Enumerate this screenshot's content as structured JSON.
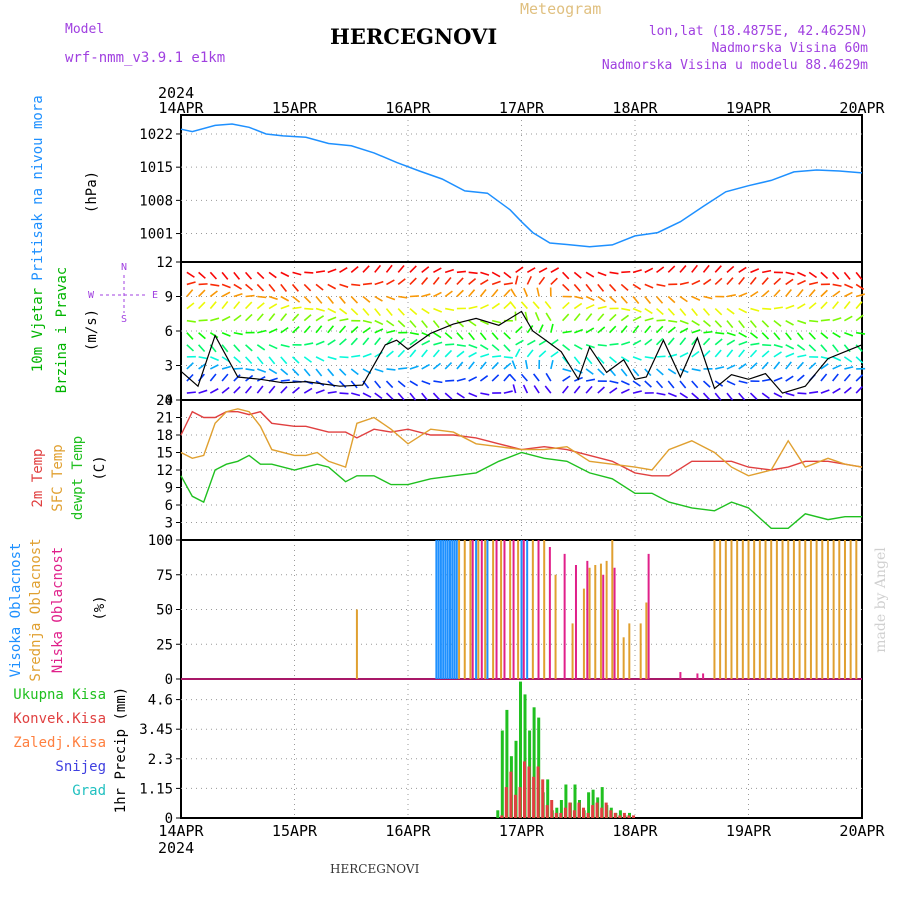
{
  "header": {
    "model_label": "Model",
    "model_name": "wrf-nmm_v3.9.1 e1km",
    "station_title": "HERCEGNOVI",
    "meteogram_label": "Meteogram",
    "lonlat": "lon,lat (18.4875E, 42.4625N)",
    "elevation": "Nadmorska Visina 60m",
    "model_elevation": "Nadmorska Visina u modelu 88.4629m",
    "footer_station": "HERCEGNOVI",
    "watermark": "made by Angel"
  },
  "colors": {
    "pressure": "#1e90ff",
    "wind_label": "#00b400",
    "temp_2m": "#e04040",
    "temp_sfc": "#e0a030",
    "dewpoint": "#20c020",
    "high_cloud": "#1e90ff",
    "mid_cloud": "#e0a030",
    "low_cloud": "#e0208a",
    "precip_total": "#20c020",
    "precip_conv": "#e04040",
    "precip_frozen": "#ff8040",
    "snow": "#4040e0",
    "hail": "#20c0c0",
    "compass": "#a040e0",
    "header_purple": "#a040e0"
  },
  "chart_data": [
    {
      "type": "line",
      "panel": "pressure",
      "ylabel": [
        "Pritisak na nivou mora",
        "(hPa)"
      ],
      "y_ticks": [
        "1022",
        "1015",
        "1008",
        "1001"
      ],
      "y_tick_values": [
        1022,
        1015,
        1008,
        1001
      ],
      "ylim": [
        995,
        1026
      ],
      "x_top_year": "2024",
      "x_bottom_year": "2024",
      "x_ticks": [
        "14APR",
        "15APR",
        "16APR",
        "17APR",
        "18APR",
        "19APR",
        "20APR"
      ],
      "xlim_days": [
        0,
        6
      ],
      "series": [
        {
          "x": [
            0,
            0.1,
            0.3,
            0.45,
            0.6,
            0.75,
            0.9,
            1.1,
            1.3,
            1.5,
            1.7,
            1.9,
            2.1,
            2.3,
            2.5,
            2.7,
            2.9,
            3.0,
            3.1,
            3.25,
            3.4,
            3.6,
            3.8,
            4.0,
            4.2,
            4.4,
            4.6,
            4.8,
            5.0,
            5.2,
            5.4,
            5.6,
            5.8,
            6.0
          ],
          "y": [
            1023,
            1022.5,
            1023.8,
            1024.1,
            1023.4,
            1022,
            1021.6,
            1021.3,
            1020,
            1019.5,
            1018,
            1016,
            1014.2,
            1012.5,
            1010,
            1009.5,
            1006,
            1003.5,
            1001.2,
            999,
            998.7,
            998.2,
            998.6,
            1000.5,
            1001.2,
            1003.5,
            1006.7,
            1009.8,
            1011.1,
            1012.2,
            1014,
            1014.4,
            1014.2,
            1013.8
          ]
        }
      ]
    },
    {
      "type": "line",
      "panel": "wind",
      "ylabel": [
        "10m Vjetar",
        "Brzina i Pravac",
        "(m/s)"
      ],
      "compass_labels": [
        "N",
        "S",
        "W",
        "E"
      ],
      "y_ticks": [
        "12",
        "9",
        "6",
        "3",
        "0"
      ],
      "y_tick_values": [
        12,
        9,
        6,
        3,
        0
      ],
      "ylim": [
        0,
        12
      ],
      "series": [
        {
          "name": "speed",
          "x": [
            0,
            0.15,
            0.3,
            0.5,
            0.7,
            0.9,
            1.1,
            1.4,
            1.6,
            1.8,
            1.9,
            2.0,
            2.2,
            2.4,
            2.6,
            2.8,
            3.0,
            3.1,
            3.2,
            3.35,
            3.5,
            3.6,
            3.75,
            3.9,
            4.0,
            4.1,
            4.25,
            4.4,
            4.55,
            4.7,
            4.85,
            5.0,
            5.15,
            5.3,
            5.5,
            5.7,
            5.85,
            6.0
          ],
          "y": [
            2.5,
            1.2,
            5.6,
            2.0,
            1.8,
            1.5,
            1.6,
            1.2,
            1.3,
            4.8,
            5.2,
            4.4,
            5.8,
            6.6,
            7.1,
            6.5,
            7.7,
            6.0,
            5.3,
            4.2,
            1.8,
            4.6,
            2.4,
            3.5,
            1.8,
            2.0,
            5.2,
            2.0,
            5.4,
            1.0,
            2.2,
            1.8,
            2.3,
            0.6,
            1.2,
            3.6,
            4.2,
            4.8
          ]
        }
      ]
    },
    {
      "type": "line",
      "panel": "temperature",
      "ylabel": [
        "2m Temp",
        "SFC Temp",
        "dewpt Temp",
        "(C)"
      ],
      "y_ticks": [
        "24",
        "21",
        "18",
        "15",
        "12",
        "9",
        "6",
        "3",
        "0"
      ],
      "y_tick_values": [
        24,
        21,
        18,
        15,
        12,
        9,
        6,
        3,
        0
      ],
      "ylim": [
        0,
        24
      ],
      "x": [
        0,
        0.1,
        0.2,
        0.3,
        0.4,
        0.5,
        0.6,
        0.7,
        0.8,
        1.0,
        1.1,
        1.2,
        1.3,
        1.45,
        1.55,
        1.7,
        1.85,
        2.0,
        2.2,
        2.4,
        2.6,
        2.8,
        3.0,
        3.2,
        3.4,
        3.6,
        3.8,
        4.0,
        4.15,
        4.3,
        4.5,
        4.7,
        4.85,
        5.0,
        5.2,
        5.35,
        5.5,
        5.7,
        5.85,
        6.0
      ],
      "series": [
        {
          "name": "2m Temp",
          "y": [
            18,
            22,
            21,
            21,
            22,
            22,
            21.5,
            22,
            20,
            19.5,
            19.5,
            19,
            18.5,
            18.5,
            17.5,
            19,
            18.5,
            19,
            18,
            18,
            17.5,
            16.5,
            15.5,
            16,
            15.5,
            14.5,
            13.5,
            11.5,
            11,
            11,
            13.5,
            13.5,
            13.5,
            12.5,
            12,
            12.5,
            13.5,
            13.5,
            13,
            12.5
          ]
        },
        {
          "name": "SFC Temp",
          "y": [
            15,
            14,
            14.5,
            20,
            22,
            22.5,
            22,
            19.5,
            15.5,
            14.5,
            14.5,
            15,
            13.5,
            12.5,
            20,
            21,
            19,
            16.5,
            19,
            18.5,
            16.5,
            16,
            15.5,
            15.5,
            16,
            13.5,
            13,
            12.5,
            12,
            15.5,
            17,
            15,
            12.5,
            11,
            12,
            17,
            12.5,
            14,
            13,
            12.5
          ]
        },
        {
          "name": "dewpt Temp",
          "y": [
            11,
            7.5,
            6.5,
            12,
            13,
            13.5,
            14.5,
            13,
            13,
            12,
            12.5,
            13,
            12.5,
            10,
            11,
            11,
            9.5,
            9.5,
            10.5,
            11,
            11.5,
            13.5,
            15,
            14,
            13.5,
            11.5,
            10.5,
            8,
            8,
            6.5,
            5.5,
            5,
            6.5,
            5.5,
            2,
            2,
            4.5,
            3.5,
            4,
            4
          ]
        }
      ]
    },
    {
      "type": "bar",
      "panel": "cloud",
      "ylabel": [
        "Visoka Oblacnost",
        "Srednja Oblacnost",
        "Niska Oblacnost",
        "(%)"
      ],
      "y_ticks": [
        "100",
        "75",
        "50",
        "25",
        "0"
      ],
      "y_tick_values": [
        100,
        75,
        50,
        25,
        0
      ],
      "ylim": [
        0,
        100
      ],
      "series": [
        {
          "name": "Visoka Oblacnost",
          "x": [
            2.25,
            2.27,
            2.29,
            2.31,
            2.33,
            2.35,
            2.37,
            2.39,
            2.41,
            2.43,
            2.6,
            2.7,
            3.0,
            3.05
          ],
          "values": [
            100,
            100,
            100,
            100,
            100,
            100,
            100,
            100,
            100,
            100,
            100,
            100,
            100,
            100
          ]
        },
        {
          "name": "Srednja Oblacnost",
          "x": [
            1.55,
            2.45,
            2.5,
            2.55,
            2.62,
            2.68,
            2.75,
            2.82,
            2.9,
            2.97,
            3.1,
            3.2,
            3.3,
            3.45,
            3.55,
            3.6,
            3.65,
            3.7,
            3.75,
            3.8,
            3.85,
            3.9,
            3.95,
            4.05,
            4.1,
            4.7,
            4.75,
            4.8,
            4.85,
            4.9,
            4.95,
            5.0,
            5.05,
            5.1,
            5.15,
            5.2,
            5.25,
            5.3,
            5.35,
            5.4,
            5.45,
            5.5,
            5.55,
            5.6,
            5.65,
            5.7,
            5.75,
            5.8,
            5.85,
            5.9,
            5.95
          ],
          "values": [
            50,
            100,
            100,
            100,
            100,
            100,
            100,
            100,
            100,
            100,
            100,
            100,
            75,
            40,
            65,
            80,
            82,
            83,
            85,
            100,
            50,
            30,
            40,
            40,
            55,
            100,
            100,
            100,
            100,
            100,
            100,
            100,
            100,
            100,
            100,
            100,
            100,
            100,
            100,
            100,
            100,
            100,
            100,
            100,
            100,
            100,
            100,
            100,
            100,
            100,
            100
          ]
        },
        {
          "name": "Niska Oblacnost",
          "x": [
            2.57,
            2.65,
            2.78,
            2.85,
            2.93,
            3.02,
            3.15,
            3.25,
            3.38,
            3.48,
            3.58,
            3.72,
            3.82,
            4.12,
            4.4,
            4.55,
            4.6
          ],
          "values": [
            100,
            100,
            100,
            100,
            100,
            100,
            100,
            95,
            90,
            82,
            85,
            75,
            80,
            90,
            5,
            4,
            4
          ]
        }
      ]
    },
    {
      "type": "bar",
      "panel": "precip",
      "ylabel": [
        "1hr Precip (mm)"
      ],
      "legend": [
        "Ukupna Kisa",
        "Konvek.Kisa",
        "Zaledj.Kisa",
        "Snijeg",
        "Grad"
      ],
      "y_ticks": [
        "4.6",
        "3.45",
        "2.3",
        "1.15",
        "0"
      ],
      "y_tick_values": [
        4.6,
        3.45,
        2.3,
        1.15,
        0
      ],
      "ylim": [
        0,
        5.4
      ],
      "x": [
        2.8,
        2.84,
        2.88,
        2.92,
        2.96,
        3.0,
        3.04,
        3.08,
        3.12,
        3.16,
        3.2,
        3.24,
        3.28,
        3.32,
        3.36,
        3.4,
        3.44,
        3.48,
        3.52,
        3.56,
        3.6,
        3.64,
        3.68,
        3.72,
        3.76,
        3.8,
        3.84,
        3.88,
        3.92,
        3.96,
        4.0,
        4.04,
        4.08
      ],
      "series": [
        {
          "name": "Ukupna Kisa",
          "values": [
            0.3,
            3.4,
            4.2,
            2.4,
            3.0,
            5.3,
            4.8,
            3.4,
            4.3,
            3.9,
            1.0,
            1.5,
            0.3,
            0.4,
            0.7,
            1.3,
            0.6,
            1.3,
            0.7,
            0.3,
            1.0,
            1.1,
            0.8,
            1.2,
            0.5,
            0.4,
            0.2,
            0.3,
            0.1,
            0.2,
            0.0,
            0.0,
            0.0
          ]
        },
        {
          "name": "Konvek.Kisa",
          "values": [
            0.1,
            1.2,
            1.8,
            0.9,
            1.2,
            2.2,
            2.0,
            1.6,
            2.0,
            1.5,
            0.5,
            0.7,
            0.2,
            0.2,
            0.4,
            0.6,
            0.3,
            0.6,
            0.4,
            0.2,
            0.5,
            0.6,
            0.4,
            0.6,
            0.3,
            0.2,
            0.1,
            0.2,
            0.1,
            0.1,
            0.0,
            0.0,
            0.0
          ]
        }
      ]
    }
  ]
}
